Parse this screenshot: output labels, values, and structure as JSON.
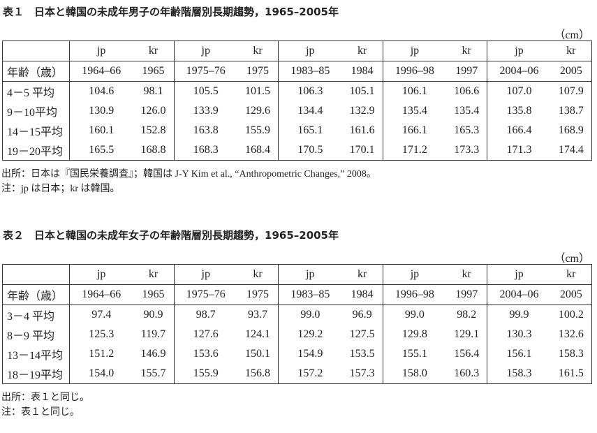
{
  "tables": [
    {
      "title": "表１　日本と韓国の未成年男子の年齢階層別長期趨勢，1965–2005年",
      "unit": "（cm）",
      "header": [
        "jp",
        "kr",
        "jp",
        "kr",
        "jp",
        "kr",
        "jp",
        "kr",
        "jp",
        "kr"
      ],
      "year_row": {
        "label": "年齢（歳）",
        "cells": [
          "1964–66",
          "1965",
          "1975–76",
          "1975",
          "1983–85",
          "1984",
          "1996–98",
          "1997",
          "2004–06",
          "2005"
        ]
      },
      "rows": [
        {
          "label": "4－5 平均",
          "cells": [
            "104.6",
            "98.1",
            "105.5",
            "101.5",
            "106.3",
            "105.1",
            "106.1",
            "106.6",
            "107.0",
            "107.9"
          ]
        },
        {
          "label": "9－10平均",
          "cells": [
            "130.9",
            "126.0",
            "133.9",
            "129.6",
            "134.4",
            "132.9",
            "135.4",
            "135.4",
            "135.8",
            "138.7"
          ]
        },
        {
          "label": "14－15平均",
          "cells": [
            "160.1",
            "152.8",
            "163.8",
            "155.9",
            "165.1",
            "161.6",
            "166.1",
            "165.3",
            "166.4",
            "168.9"
          ]
        },
        {
          "label": "19－20平均",
          "cells": [
            "165.5",
            "168.8",
            "168.3",
            "168.4",
            "170.5",
            "170.1",
            "171.2",
            "173.3",
            "171.3",
            "174.4"
          ]
        }
      ],
      "notes": [
        "出所：日本は『国民栄養調査』；韓国は J-Y Kim et al., “Anthropometric Changes,” 2008。",
        "注：jp は日本；kr は韓国。"
      ]
    },
    {
      "title": "表２　日本と韓国の未成年女子の年齢階層別長期趨勢，1965–2005年",
      "unit": "（cm）",
      "header": [
        "jp",
        "kr",
        "jp",
        "kr",
        "jp",
        "kr",
        "jp",
        "kr",
        "jp",
        "kr"
      ],
      "year_row": {
        "label": "年齢（歳）",
        "cells": [
          "1964–66",
          "1965",
          "1975–76",
          "1975",
          "1983–85",
          "1984",
          "1996–98",
          "1997",
          "2004–06",
          "2005"
        ]
      },
      "rows": [
        {
          "label": "3－4 平均",
          "cells": [
            "97.4",
            "90.9",
            "98.7",
            "93.7",
            "99.0",
            "96.9",
            "99.0",
            "98.2",
            "99.9",
            "100.2"
          ]
        },
        {
          "label": "8－9 平均",
          "cells": [
            "125.3",
            "119.7",
            "127.6",
            "124.1",
            "129.2",
            "127.5",
            "129.8",
            "129.1",
            "130.3",
            "132.6"
          ]
        },
        {
          "label": "13－14平均",
          "cells": [
            "151.2",
            "146.9",
            "153.6",
            "150.1",
            "154.9",
            "153.5",
            "155.1",
            "156.4",
            "156.1",
            "158.3"
          ]
        },
        {
          "label": "18－19平均",
          "cells": [
            "154.0",
            "155.7",
            "155.9",
            "156.8",
            "157.2",
            "157.3",
            "158.0",
            "160.3",
            "158.3",
            "161.5"
          ]
        }
      ],
      "notes": [
        "出所：表１と同じ。",
        "注：表１と同じ。"
      ]
    }
  ]
}
